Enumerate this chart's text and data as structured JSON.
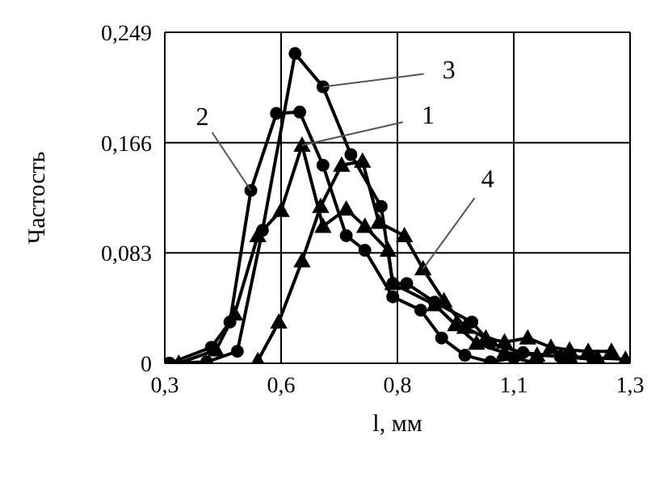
{
  "chart_data": {
    "type": "line",
    "xlabel": "l, мм",
    "ylabel": "Частость",
    "xlim": [
      0.3,
      1.3
    ],
    "xticks": [
      {
        "value": 0.3,
        "label": "0,3"
      },
      {
        "value": 0.55,
        "label": "0,6"
      },
      {
        "value": 0.8,
        "label": "0,8"
      },
      {
        "value": 1.05,
        "label": "1,1"
      },
      {
        "value": 1.3,
        "label": "1,3"
      }
    ],
    "ylim": [
      0,
      0.249
    ],
    "yticks": [
      {
        "value": 0,
        "label": "0"
      },
      {
        "value": 0.083,
        "label": "0,083"
      },
      {
        "value": 0.166,
        "label": "0,166"
      },
      {
        "value": 0.249,
        "label": "0,249"
      }
    ],
    "grid": true,
    "legend": false,
    "line_style": "solid",
    "series": [
      {
        "name": "1",
        "color": "#000000",
        "marker": "triangle",
        "x": [
          0.33,
          0.41,
          0.45,
          0.5,
          0.55,
          0.595,
          0.64,
          0.69,
          0.73,
          0.78,
          0.79,
          0.88,
          0.925,
          0.97,
          1.03,
          1.1,
          1.17,
          1.23,
          1.29
        ],
        "values": [
          0,
          0.01,
          0.037,
          0.096,
          0.115,
          0.164,
          0.103,
          0.116,
          0.103,
          0.085,
          0.06,
          0.044,
          0.029,
          0.015,
          0.008,
          0.006,
          0.005,
          0.004,
          0.003
        ]
      },
      {
        "name": "2",
        "color": "#000000",
        "marker": "circle",
        "x": [
          0.31,
          0.4,
          0.44,
          0.485,
          0.54,
          0.59,
          0.64,
          0.69,
          0.73,
          0.79,
          0.85,
          0.895,
          0.945,
          1.0,
          1.05,
          1.1
        ],
        "values": [
          0,
          0.012,
          0.031,
          0.13,
          0.188,
          0.189,
          0.149,
          0.096,
          0.085,
          0.05,
          0.04,
          0.019,
          0.006,
          0.001,
          0.004,
          0
        ]
      },
      {
        "name": "3",
        "color": "#000000",
        "marker": "circle",
        "x": [
          0.31,
          0.39,
          0.456,
          0.51,
          0.58,
          0.64,
          0.7,
          0.765,
          0.79,
          0.82,
          0.88,
          0.96,
          1.0,
          1.07,
          1.15,
          1.22
        ],
        "values": [
          0,
          0.001,
          0.009,
          0.1,
          0.233,
          0.208,
          0.157,
          0.118,
          0.06,
          0.06,
          0.046,
          0.031,
          0.015,
          0.008,
          0.005,
          0.003
        ]
      },
      {
        "name": "4",
        "color": "#000000",
        "marker": "triangle",
        "x": [
          0.5,
          0.545,
          0.595,
          0.635,
          0.68,
          0.725,
          0.76,
          0.815,
          0.855,
          0.9,
          0.945,
          0.99,
          1.03,
          1.08,
          1.13,
          1.17,
          1.21,
          1.26
        ],
        "values": [
          0.002,
          0.031,
          0.077,
          0.118,
          0.149,
          0.152,
          0.106,
          0.096,
          0.071,
          0.047,
          0.027,
          0.019,
          0.016,
          0.019,
          0.012,
          0.01,
          0.009,
          0.009
        ]
      }
    ]
  }
}
